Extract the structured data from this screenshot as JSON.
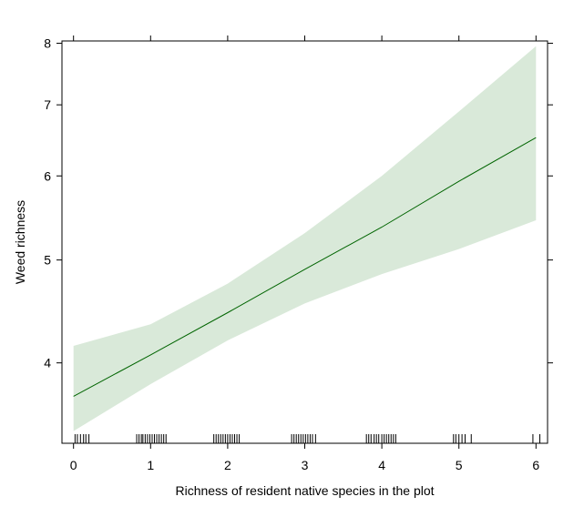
{
  "chart_data": {
    "type": "line",
    "title": "",
    "xlabel": "Richness of resident native species in the plot",
    "ylabel": "Weed richness",
    "xlim": [
      -0.15,
      6.15
    ],
    "ylim": [
      3.36,
      8.04
    ],
    "y_scale": "log",
    "x_ticks": [
      0,
      1,
      2,
      3,
      4,
      5,
      6
    ],
    "y_ticks": [
      4,
      5,
      6,
      7,
      8
    ],
    "grid": false,
    "legend": "none",
    "fit_line": {
      "x": [
        0,
        1,
        2,
        3,
        4,
        5,
        6
      ],
      "y": [
        3.72,
        4.07,
        4.46,
        4.9,
        5.37,
        5.93,
        6.52
      ]
    },
    "confidence_band": {
      "x": [
        0,
        1,
        2,
        3,
        4,
        5,
        6
      ],
      "lower": [
        3.45,
        3.82,
        4.2,
        4.55,
        4.85,
        5.12,
        5.45
      ],
      "upper": [
        4.15,
        4.35,
        4.75,
        5.3,
        6.0,
        6.9,
        7.95
      ]
    },
    "rug_x": [
      0.02,
      0.05,
      0.09,
      0.13,
      0.16,
      0.2,
      0.82,
      0.85,
      0.88,
      0.9,
      0.93,
      0.96,
      0.99,
      1.02,
      1.05,
      1.08,
      1.11,
      1.14,
      1.17,
      1.2,
      1.82,
      1.85,
      1.88,
      1.91,
      1.94,
      1.97,
      2.0,
      2.03,
      2.06,
      2.09,
      2.12,
      2.15,
      2.83,
      2.86,
      2.89,
      2.92,
      2.95,
      2.98,
      3.01,
      3.04,
      3.07,
      3.1,
      3.14,
      3.8,
      3.83,
      3.86,
      3.9,
      3.93,
      3.96,
      4.0,
      4.03,
      4.06,
      4.09,
      4.12,
      4.15,
      4.18,
      4.93,
      4.96,
      5.0,
      5.04,
      5.08,
      5.16,
      5.96,
      6.05
    ],
    "colors": {
      "line": "#006400",
      "band": "#d9e9d9",
      "axis": "#000000"
    }
  }
}
